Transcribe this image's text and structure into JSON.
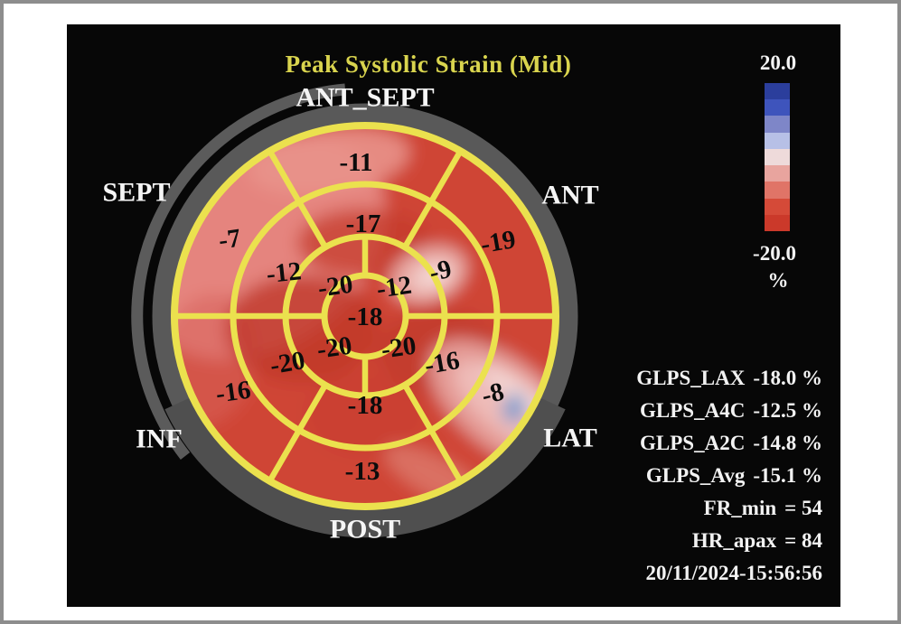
{
  "title": "Peak Systolic Strain (Mid)",
  "region_labels": {
    "ant_sept": "ANT_SEPT",
    "sept": "SEPT",
    "ant": "ANT",
    "inf": "INF",
    "lat": "LAT",
    "post": "POST"
  },
  "colorbar": {
    "max_label": "20.0",
    "min_label": "-20.0",
    "unit": "%",
    "colors": [
      "#2b3e9c",
      "#3e54bc",
      "#7e86c8",
      "#b7c0e6",
      "#eedada",
      "#e8a49e",
      "#e07467",
      "#d54a38",
      "#cb392a"
    ]
  },
  "chart_data": {
    "type": "bullseye_polar_map",
    "title": "Peak Systolic Strain (Mid)",
    "unit": "%",
    "scale_max": 20.0,
    "scale_min": -20.0,
    "segments": {
      "basal": {
        "ANT_SEPT": "-11",
        "ANT": "-19",
        "LAT": "-8",
        "POST": "-13",
        "INF": "-16",
        "SEPT": "-7"
      },
      "mid": {
        "ANT_SEPT": "-17",
        "ANT": "-9",
        "LAT": "-16",
        "POST": "-18",
        "INF": "-20",
        "SEPT": "-12"
      },
      "apical": {
        "top_left": "-20",
        "top_right": "-12",
        "bottom_left": "-20",
        "bottom_right": "-20"
      },
      "apex": "-18"
    }
  },
  "measurements": [
    {
      "label": "GLPS_LAX",
      "value": "-18.0 %"
    },
    {
      "label": "GLPS_A4C",
      "value": "-12.5 %"
    },
    {
      "label": "GLPS_A2C",
      "value": "-14.8 %"
    },
    {
      "label": "GLPS_Avg",
      "value": "-15.1 %"
    },
    {
      "label": "FR_min",
      "value": "= 54"
    },
    {
      "label": "HR_apax",
      "value": "= 84"
    }
  ],
  "timestamp": "20/11/2024-15:56:56"
}
